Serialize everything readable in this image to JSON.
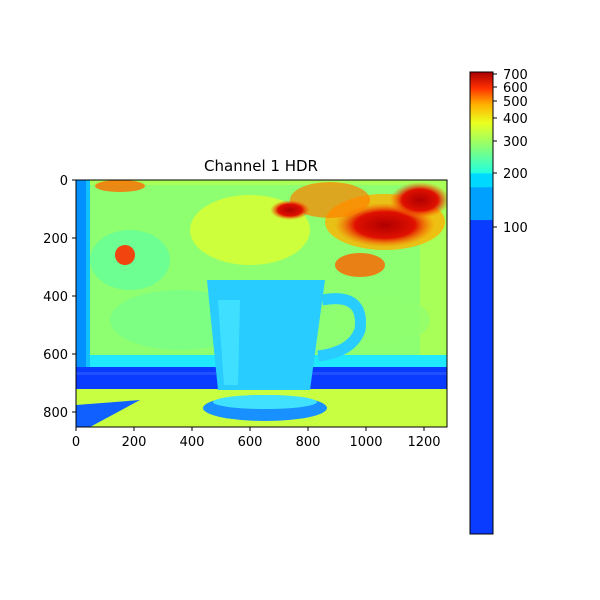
{
  "figure": {
    "title": "Channel 1 HDR"
  },
  "image_axes": {
    "x_ticks": [
      "0",
      "200",
      "400",
      "600",
      "800",
      "1000",
      "1200"
    ],
    "y_ticks": [
      "0",
      "200",
      "400",
      "600",
      "800"
    ],
    "xlim": [
      0,
      1280
    ],
    "ylim": [
      850,
      0
    ]
  },
  "colorbar": {
    "scale": "log",
    "colormap": "jet",
    "tick_labels": [
      "700",
      "600",
      "500",
      "400",
      "300",
      "200",
      "100"
    ],
    "colors": {
      "low": "#0a3cff",
      "mid_blue": "#00a0ff",
      "cyan": "#00ffe0",
      "high": "#b00000"
    }
  }
}
